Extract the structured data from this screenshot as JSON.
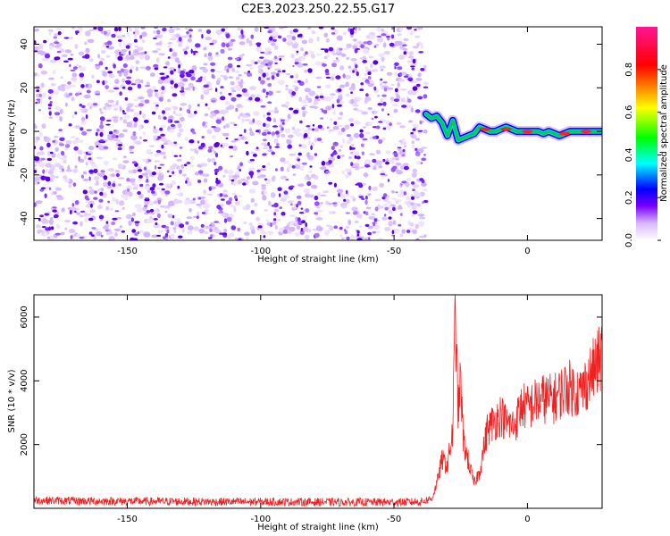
{
  "title": "C2E3.2023.250.22.55.G17",
  "colors": {
    "background": "#ffffff",
    "axis": "#000000",
    "snr_line": "#ee2222",
    "noise_purple_dark": "#5a00e0",
    "noise_purple_light": "#d9b8ff"
  },
  "chart_data": [
    {
      "type": "heatmap",
      "title": "",
      "xlabel": "Height of straight line (km)",
      "ylabel": "Frequency (Hz)",
      "xlim": [
        -185,
        28
      ],
      "ylim": [
        -50,
        48
      ],
      "x_ticks": [
        -150,
        -100,
        -50,
        0
      ],
      "x_tick_labels": [
        "-150",
        "-100",
        "-50",
        "0"
      ],
      "y_ticks": [
        -40,
        -20,
        0,
        20,
        40
      ],
      "y_tick_labels": [
        "-40",
        "-20",
        "0",
        "20",
        "40"
      ],
      "noise_region_x": [
        -185,
        -38
      ],
      "signal_track": {
        "x": [
          -38,
          -36,
          -34,
          -32,
          -30,
          -28,
          -26,
          -24,
          -22,
          -20,
          -18,
          -16,
          -14,
          -12,
          -10,
          -8,
          -6,
          -4,
          -2,
          0,
          2,
          4,
          6,
          8,
          10,
          12,
          14,
          16,
          18,
          20,
          22,
          24,
          26,
          28
        ],
        "y": [
          8,
          6,
          7,
          4,
          -2,
          5,
          -4,
          -3,
          -2,
          -1,
          2,
          1,
          0,
          0,
          1,
          2,
          1,
          0,
          0,
          0,
          0,
          0,
          -1,
          0,
          -1,
          -2,
          -1,
          0,
          0,
          0,
          0,
          0,
          0,
          0
        ]
      },
      "grid": false,
      "colorbar": {
        "label": "Normalized spectral amplitude",
        "range": [
          0,
          1
        ],
        "ticks": [
          0.0,
          0.2,
          0.4,
          0.6,
          0.8
        ],
        "tick_labels": [
          "0.0",
          "0.2",
          "0.4",
          "0.6",
          "0.8"
        ],
        "colormap": [
          "#ffffff",
          "#cfa8ff",
          "#7a00ff",
          "#0000ff",
          "#00ffff",
          "#00ff00",
          "#ffff00",
          "#ff0000",
          "#ff1493"
        ]
      }
    },
    {
      "type": "line",
      "title": "",
      "xlabel": "Height of straight line (km)",
      "ylabel": "SNR (10 * v/v)",
      "xlim": [
        -185,
        28
      ],
      "ylim": [
        0,
        6700
      ],
      "x_ticks": [
        -150,
        -100,
        -50,
        0
      ],
      "x_tick_labels": [
        "-150",
        "-100",
        "-50",
        "0"
      ],
      "y_ticks": [
        2000,
        4000,
        6000
      ],
      "y_tick_labels": [
        "2000",
        "4000",
        "6000"
      ],
      "grid": false,
      "envelope": {
        "x": [
          -185,
          -170,
          -150,
          -130,
          -110,
          -90,
          -70,
          -50,
          -40,
          -36,
          -34,
          -32,
          -30,
          -28,
          -27,
          -26,
          -25,
          -24,
          -22,
          -20,
          -18,
          -15,
          -12,
          -10,
          -8,
          -5,
          -2,
          0,
          5,
          10,
          15,
          20,
          25,
          28
        ],
        "y": [
          200,
          180,
          170,
          160,
          150,
          150,
          140,
          140,
          150,
          250,
          800,
          1600,
          1400,
          2500,
          6600,
          3200,
          4200,
          2200,
          1500,
          800,
          1200,
          2600,
          2900,
          3100,
          2800,
          2700,
          3400,
          3300,
          3600,
          3600,
          4000,
          3800,
          4600,
          5000
        ]
      }
    }
  ],
  "panel1": {
    "x_tick_labels": [
      "-150",
      "-100",
      "-50",
      "0"
    ],
    "y_tick_labels": [
      "-40",
      "-20",
      "0",
      "20",
      "40"
    ]
  }
}
